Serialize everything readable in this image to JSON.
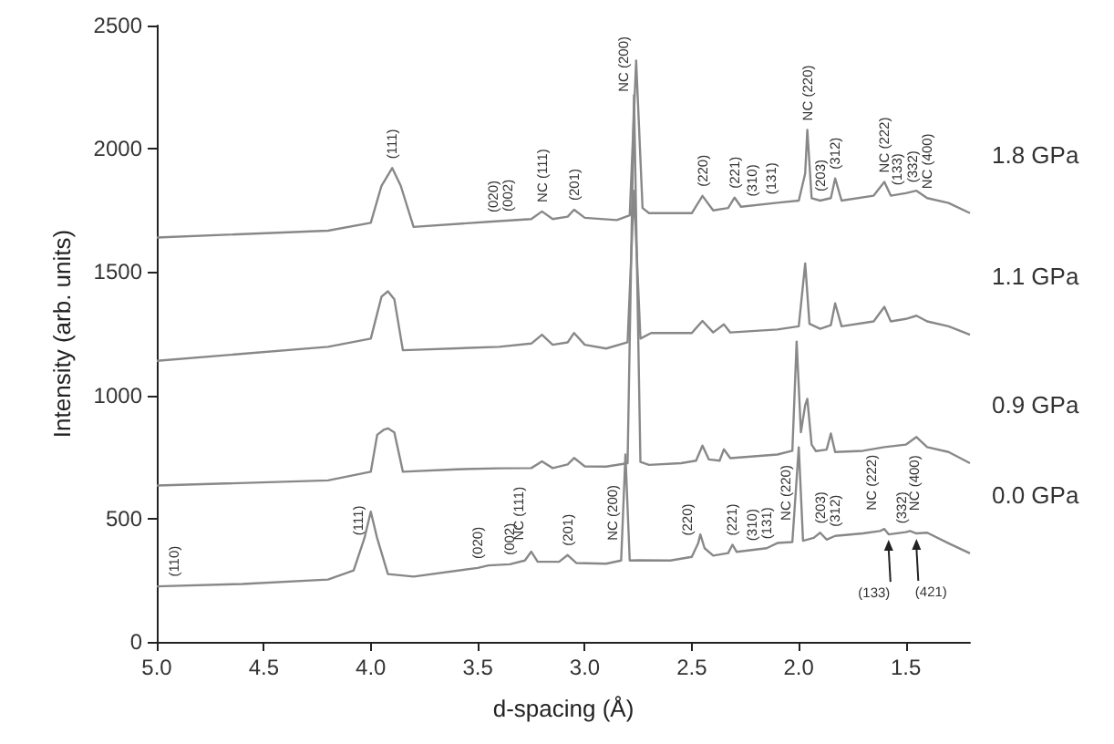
{
  "chart_data": {
    "type": "line",
    "xlabel": "d-spacing (Å)",
    "ylabel": "Intensity (arb. units)",
    "xlim": [
      5.0,
      1.2
    ],
    "xticks": [
      {
        "value": 5,
        "label": "5.0"
      },
      4.5,
      {
        "value": 4,
        "label": "4.0"
      },
      3.5,
      {
        "value": 3,
        "label": "3.0"
      },
      2.5,
      {
        "value": 2,
        "label": "2.0"
      },
      1.5
    ],
    "ylim": [
      0,
      2500
    ],
    "yticks": [
      0,
      500,
      1000,
      1500,
      2000,
      2500
    ],
    "grid": false,
    "legend": false,
    "marker": "none",
    "line_style": "solid",
    "series": [
      {
        "name": "0.0 GPa",
        "color": "#888888",
        "x": [
          5.0,
          4.6,
          4.2,
          4.08,
          4.03,
          4.0,
          3.97,
          3.92,
          3.8,
          3.5,
          3.45,
          3.35,
          3.28,
          3.25,
          3.22,
          3.12,
          3.08,
          3.04,
          2.9,
          2.83,
          2.81,
          2.79,
          2.75,
          2.6,
          2.5,
          2.47,
          2.46,
          2.44,
          2.4,
          2.33,
          2.31,
          2.29,
          2.15,
          2.1,
          2.03,
          2.0,
          1.98,
          1.93,
          1.9,
          1.87,
          1.83,
          1.7,
          1.62,
          1.6,
          1.58,
          1.5,
          1.48,
          1.45,
          1.4,
          1.3,
          1.2
        ],
        "values": [
          225,
          235,
          253,
          290,
          420,
          528,
          420,
          275,
          265,
          300,
          310,
          315,
          330,
          366,
          325,
          325,
          352,
          320,
          317,
          330,
          760,
          330,
          331,
          330,
          345,
          400,
          436,
          380,
          350,
          360,
          394,
          365,
          380,
          401,
          405,
          789,
          410,
          422,
          443,
          415,
          430,
          440,
          450,
          458,
          436,
          445,
          450,
          440,
          443,
          400,
          359
        ]
      },
      {
        "name": "0.9 GPa",
        "color": "#888888",
        "x": [
          5.0,
          4.2,
          4.0,
          3.97,
          3.94,
          3.92,
          3.89,
          3.85,
          3.6,
          3.4,
          3.25,
          3.2,
          3.15,
          3.08,
          3.05,
          3.0,
          2.9,
          2.8,
          2.77,
          2.74,
          2.7,
          2.55,
          2.48,
          2.45,
          2.42,
          2.37,
          2.35,
          2.32,
          2.1,
          2.03,
          2.01,
          1.99,
          1.97,
          1.96,
          1.94,
          1.92,
          1.87,
          1.85,
          1.83,
          1.7,
          1.6,
          1.5,
          1.45,
          1.4,
          1.3,
          1.2
        ],
        "values": [
          634,
          655,
          690,
          840,
          860,
          866,
          850,
          690,
          700,
          704,
          705,
          732,
          705,
          720,
          746,
          712,
          711,
          725,
          2218,
          730,
          718,
          725,
          735,
          796,
          740,
          735,
          781,
          745,
          760,
          775,
          1218,
          850,
          960,
          986,
          800,
          774,
          780,
          845,
          770,
          775,
          790,
          800,
          831,
          790,
          770,
          725
        ]
      },
      {
        "name": "1.1 GPa",
        "color": "#888888",
        "x": [
          5.0,
          4.2,
          4.0,
          3.95,
          3.92,
          3.89,
          3.85,
          3.4,
          3.25,
          3.2,
          3.15,
          3.08,
          3.05,
          3.0,
          2.9,
          2.8,
          2.77,
          2.74,
          2.69,
          2.5,
          2.45,
          2.4,
          2.35,
          2.32,
          2.1,
          2.0,
          1.97,
          1.95,
          1.9,
          1.85,
          1.83,
          1.8,
          1.65,
          1.6,
          1.57,
          1.5,
          1.45,
          1.4,
          1.3,
          1.2
        ],
        "values": [
          1140,
          1197,
          1230,
          1400,
          1422,
          1390,
          1183,
          1197,
          1210,
          1246,
          1205,
          1215,
          1253,
          1205,
          1190,
          1215,
          1830,
          1230,
          1253,
          1253,
          1302,
          1255,
          1288,
          1255,
          1267,
          1280,
          1535,
          1290,
          1270,
          1285,
          1373,
          1280,
          1300,
          1359,
          1300,
          1310,
          1323,
          1300,
          1280,
          1246
        ]
      },
      {
        "name": "1.8 GPa",
        "color": "#888888",
        "x": [
          5.0,
          4.2,
          4.0,
          3.95,
          3.9,
          3.86,
          3.8,
          3.45,
          3.25,
          3.2,
          3.15,
          3.08,
          3.05,
          3.0,
          2.85,
          2.79,
          2.76,
          2.73,
          2.7,
          2.5,
          2.45,
          2.4,
          2.33,
          2.3,
          2.27,
          2.1,
          2.0,
          1.97,
          1.96,
          1.94,
          1.9,
          1.85,
          1.83,
          1.8,
          1.65,
          1.6,
          1.57,
          1.5,
          1.45,
          1.4,
          1.3,
          1.2
        ],
        "values": [
          1640,
          1668,
          1700,
          1850,
          1922,
          1850,
          1683,
          1704,
          1715,
          1746,
          1715,
          1725,
          1753,
          1720,
          1711,
          1730,
          2358,
          1760,
          1739,
          1739,
          1809,
          1750,
          1760,
          1802,
          1765,
          1781,
          1790,
          1900,
          2077,
          1800,
          1790,
          1800,
          1880,
          1790,
          1810,
          1866,
          1810,
          1820,
          1830,
          1800,
          1780,
          1739
        ]
      }
    ],
    "annotations": [
      {
        "text": "(111)",
        "x": 3.9,
        "y": 1922
      },
      {
        "text": "(020)",
        "x": 3.43,
        "y": 1705
      },
      {
        "text": "(002)",
        "x": 3.36,
        "y": 1709
      },
      {
        "text": "NC (111)",
        "x": 3.2,
        "y": 1746
      },
      {
        "text": "(201)",
        "x": 3.05,
        "y": 1753
      },
      {
        "text": "NC (200)",
        "x": 2.76,
        "y": 2358
      },
      {
        "text": "(220)",
        "x": 2.45,
        "y": 1809
      },
      {
        "text": "(221)",
        "x": 2.3,
        "y": 1802
      },
      {
        "text": "(310)",
        "x": 2.22,
        "y": 1770
      },
      {
        "text": "(131)",
        "x": 2.13,
        "y": 1778
      },
      {
        "text": "NC (220)",
        "x": 1.96,
        "y": 2077
      },
      {
        "text": "(203)",
        "x": 1.9,
        "y": 1790
      },
      {
        "text": "(312)",
        "x": 1.83,
        "y": 1880
      },
      {
        "text": "NC (222)",
        "x": 1.6,
        "y": 1866
      },
      {
        "text": "(133)",
        "x": 1.54,
        "y": 1815
      },
      {
        "text": "(332)",
        "x": 1.47,
        "y": 1826
      },
      {
        "text": "NC (400)",
        "x": 1.4,
        "y": 1800
      },
      {
        "text": "(110)",
        "x": 4.92,
        "y": 227
      },
      {
        "text": "(111)",
        "x": 4.0,
        "y": 528
      },
      {
        "text": "(020)",
        "x": 3.5,
        "y": 300
      },
      {
        "text": "(002)",
        "x": 3.35,
        "y": 315
      },
      {
        "text": "NC (111)",
        "x": 3.25,
        "y": 366
      },
      {
        "text": "(201)",
        "x": 3.08,
        "y": 352
      },
      {
        "text": "NC (200)",
        "x": 2.81,
        "y": 760
      },
      {
        "text": "(220)",
        "x": 2.46,
        "y": 436
      },
      {
        "text": "(221)",
        "x": 2.31,
        "y": 394
      },
      {
        "text": "(310)",
        "x": 2.22,
        "y": 373
      },
      {
        "text": "(131)",
        "x": 2.15,
        "y": 380
      },
      {
        "text": "NC (220)",
        "x": 2.0,
        "y": 789
      },
      {
        "text": "(203)",
        "x": 1.9,
        "y": 443
      },
      {
        "text": "(312)",
        "x": 1.83,
        "y": 430
      },
      {
        "text": "NC (222)",
        "x": 1.6,
        "y": 458
      },
      {
        "text": "(332)",
        "x": 1.52,
        "y": 443
      },
      {
        "text": "NC (400)",
        "x": 1.4,
        "y": 443
      },
      {
        "text": "(133)",
        "x": 1.58,
        "y": 436
      },
      {
        "text": "(421)",
        "x": 1.45,
        "y": 440
      }
    ]
  }
}
